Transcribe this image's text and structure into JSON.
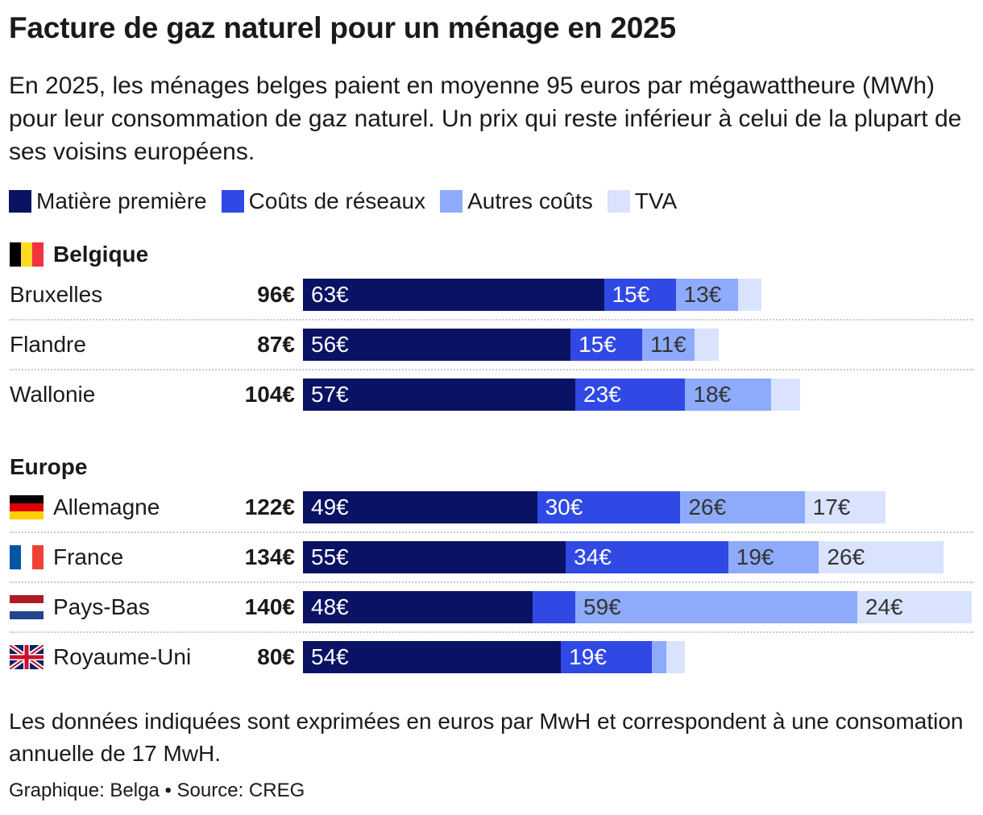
{
  "title": "Facture de gaz naturel pour un ménage en 2025",
  "subtitle": "En 2025, les ménages belges paient en moyenne 95 euros par mégawattheure (MWh) pour leur consommation de gaz naturel. Un prix qui reste inférieur à celui de la plupart de ses voisins européens.",
  "note": "Les données indiquées sont exprimées en euros par MwH et correspondent à une consomation annuelle de 17 MwH.",
  "source": "Graphique: Belga • Source: CREG",
  "chart_data": {
    "type": "bar",
    "orientation": "horizontal",
    "stacked": true,
    "unit": "€",
    "legend": [
      {
        "name": "Matière première",
        "color": "#0a1264"
      },
      {
        "name": "Coûts de réseaux",
        "color": "#3049e4"
      },
      {
        "name": "Autres coûts",
        "color": "#8eabfb"
      },
      {
        "name": "TVA",
        "color": "#d9e3fd"
      }
    ],
    "groups": [
      {
        "name": "Belgique",
        "flag": "be-flag",
        "rows": [
          {
            "label": "Bruxelles",
            "total": "96€",
            "values": [
              63,
              15,
              13,
              5
            ],
            "labels": [
              "63€",
              "15€",
              "13€",
              ""
            ]
          },
          {
            "label": "Flandre",
            "total": "87€",
            "values": [
              56,
              15,
              11,
              5
            ],
            "labels": [
              "56€",
              "15€",
              "11€",
              ""
            ]
          },
          {
            "label": "Wallonie",
            "total": "104€",
            "values": [
              57,
              23,
              18,
              6
            ],
            "labels": [
              "57€",
              "23€",
              "18€",
              ""
            ]
          }
        ]
      },
      {
        "name": "Europe",
        "flag": "",
        "rows": [
          {
            "label": "Allemagne",
            "flag": "de-flag",
            "total": "122€",
            "values": [
              49,
              30,
              26,
              17
            ],
            "labels": [
              "49€",
              "30€",
              "26€",
              "17€"
            ]
          },
          {
            "label": "France",
            "flag": "fr-flag",
            "total": "134€",
            "values": [
              55,
              34,
              19,
              26
            ],
            "labels": [
              "55€",
              "34€",
              "19€",
              "26€"
            ]
          },
          {
            "label": "Pays-Bas",
            "flag": "nl-flag",
            "total": "140€",
            "values": [
              48,
              9,
              59,
              24
            ],
            "labels": [
              "48€",
              "",
              "59€",
              "24€"
            ]
          },
          {
            "label": "Royaume-Uni",
            "flag": "uk-flag",
            "total": "80€",
            "values": [
              54,
              19,
              3,
              4
            ],
            "labels": [
              "54€",
              "19€",
              "",
              ""
            ]
          }
        ]
      }
    ],
    "label_colors": [
      "#ffffff",
      "#ffffff",
      "#333333",
      "#333333"
    ]
  }
}
